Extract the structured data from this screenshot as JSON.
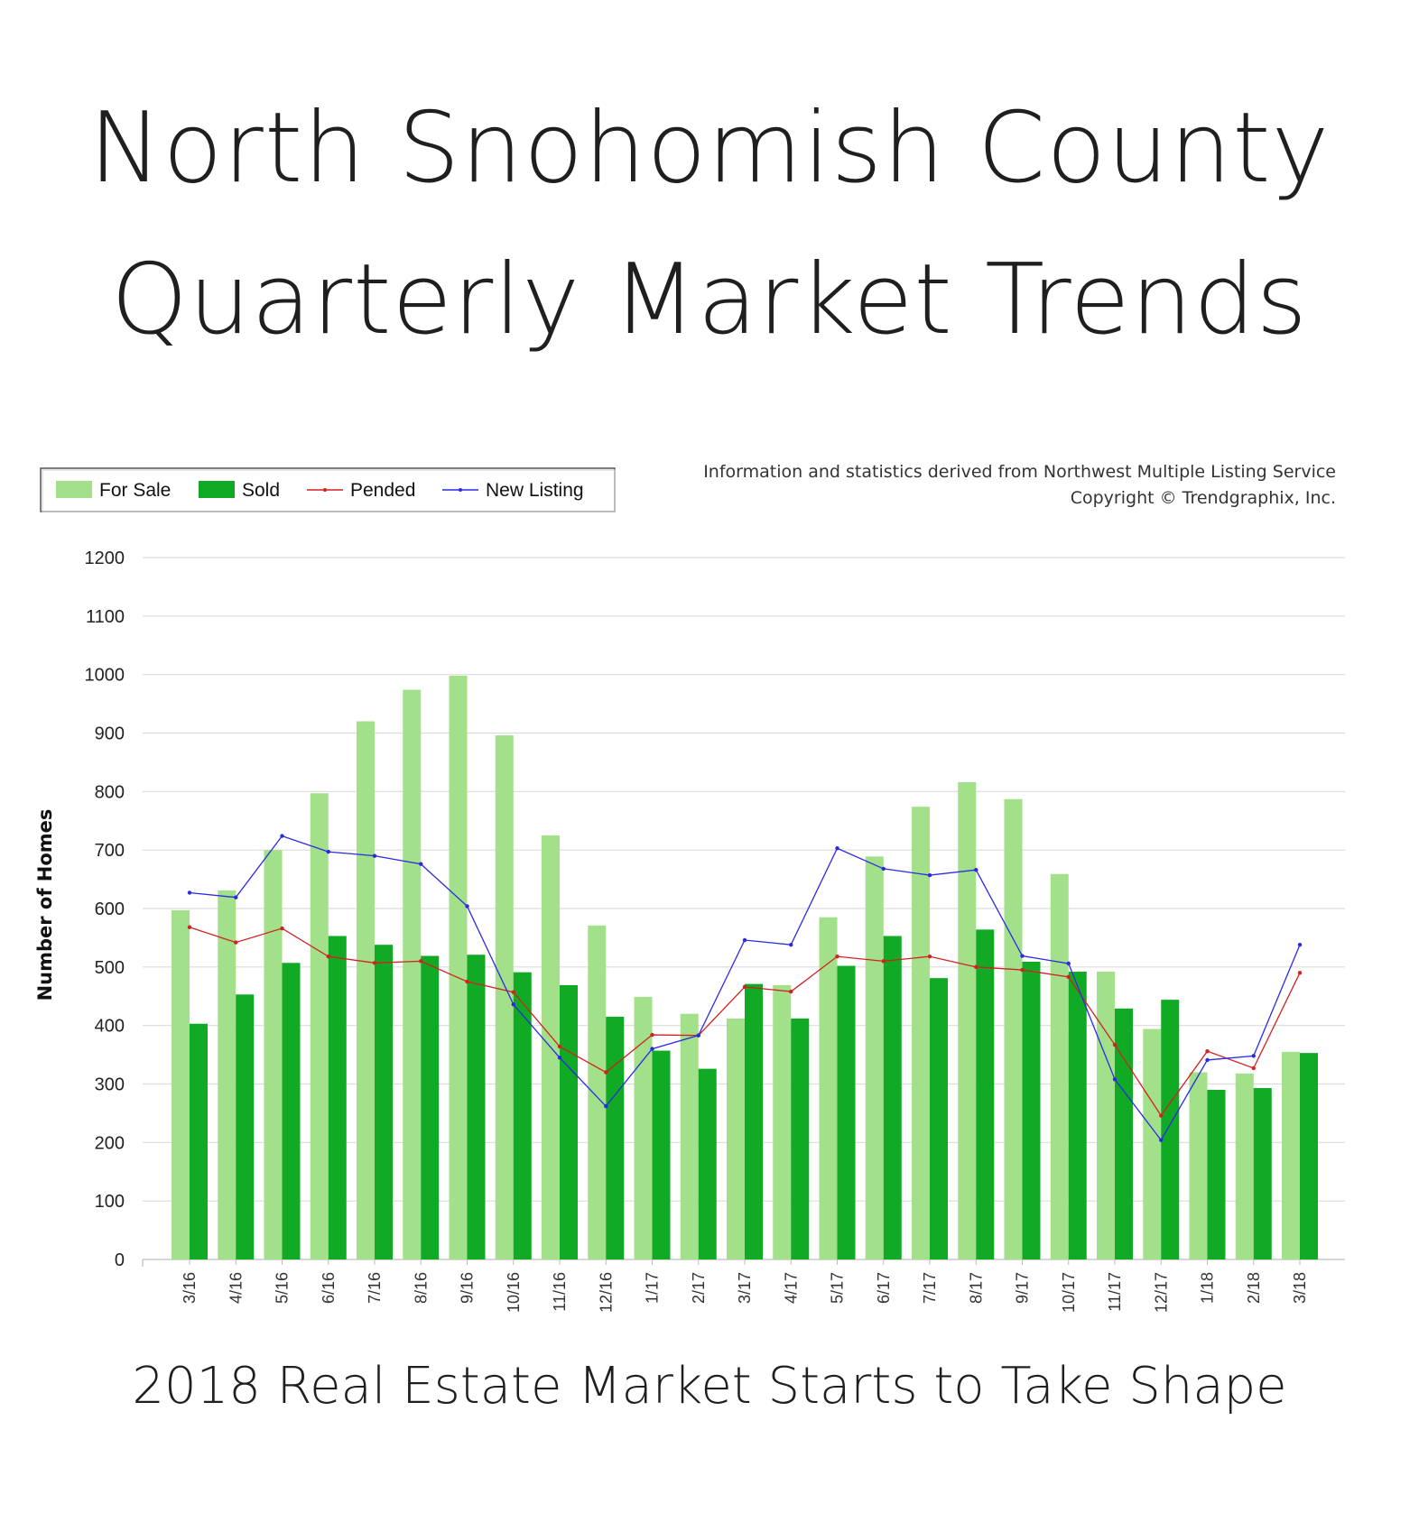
{
  "title_line1": "North Snohomish County",
  "title_line2": "Quarterly Market Trends",
  "subtitle": "2018 Real Estate Market Starts to Take Shape",
  "source_line1": "Information and statistics derived from Northwest Multiple Listing Service",
  "source_line2": "Copyright © Trendgraphix, Inc.",
  "colors": {
    "for_sale": "#a2e08a",
    "sold": "#10aa24",
    "pended": "#d42020",
    "new_listing": "#2a2ae6",
    "grid": "#dcdcdc"
  },
  "chart_data": {
    "type": "bar",
    "ylabel": "Number of Homes",
    "ylim": [
      0,
      1200
    ],
    "yticks": [
      0,
      100,
      200,
      300,
      400,
      500,
      600,
      700,
      800,
      900,
      1000,
      1100,
      1200
    ],
    "grid": true,
    "legend_position": "top-left",
    "categories": [
      "3/16",
      "4/16",
      "5/16",
      "6/16",
      "7/16",
      "8/16",
      "9/16",
      "10/16",
      "11/16",
      "12/16",
      "1/17",
      "2/17",
      "3/17",
      "4/17",
      "5/17",
      "6/17",
      "7/17",
      "8/17",
      "9/17",
      "10/17",
      "11/17",
      "12/17",
      "1/18",
      "2/18",
      "3/18"
    ],
    "series": [
      {
        "name": "For Sale",
        "kind": "bar",
        "values": [
          597,
          631,
          700,
          797,
          920,
          974,
          998,
          896,
          725,
          571,
          449,
          420,
          412,
          469,
          585,
          689,
          774,
          816,
          787,
          659,
          492,
          394,
          320,
          318,
          355
        ]
      },
      {
        "name": "Sold",
        "kind": "bar",
        "values": [
          403,
          453,
          507,
          553,
          538,
          519,
          521,
          491,
          469,
          415,
          357,
          326,
          471,
          412,
          502,
          553,
          481,
          564,
          509,
          492,
          429,
          444,
          290,
          293,
          353
        ]
      },
      {
        "name": "Pended",
        "kind": "line",
        "values": [
          568,
          542,
          566,
          518,
          507,
          510,
          475,
          457,
          364,
          320,
          384,
          383,
          466,
          458,
          518,
          510,
          518,
          500,
          495,
          483,
          367,
          246,
          356,
          327,
          490
        ]
      },
      {
        "name": "New Listing",
        "kind": "line",
        "values": [
          627,
          619,
          724,
          697,
          690,
          676,
          604,
          436,
          345,
          262,
          360,
          383,
          546,
          538,
          703,
          668,
          657,
          666,
          519,
          506,
          308,
          204,
          341,
          348,
          538
        ]
      }
    ]
  }
}
